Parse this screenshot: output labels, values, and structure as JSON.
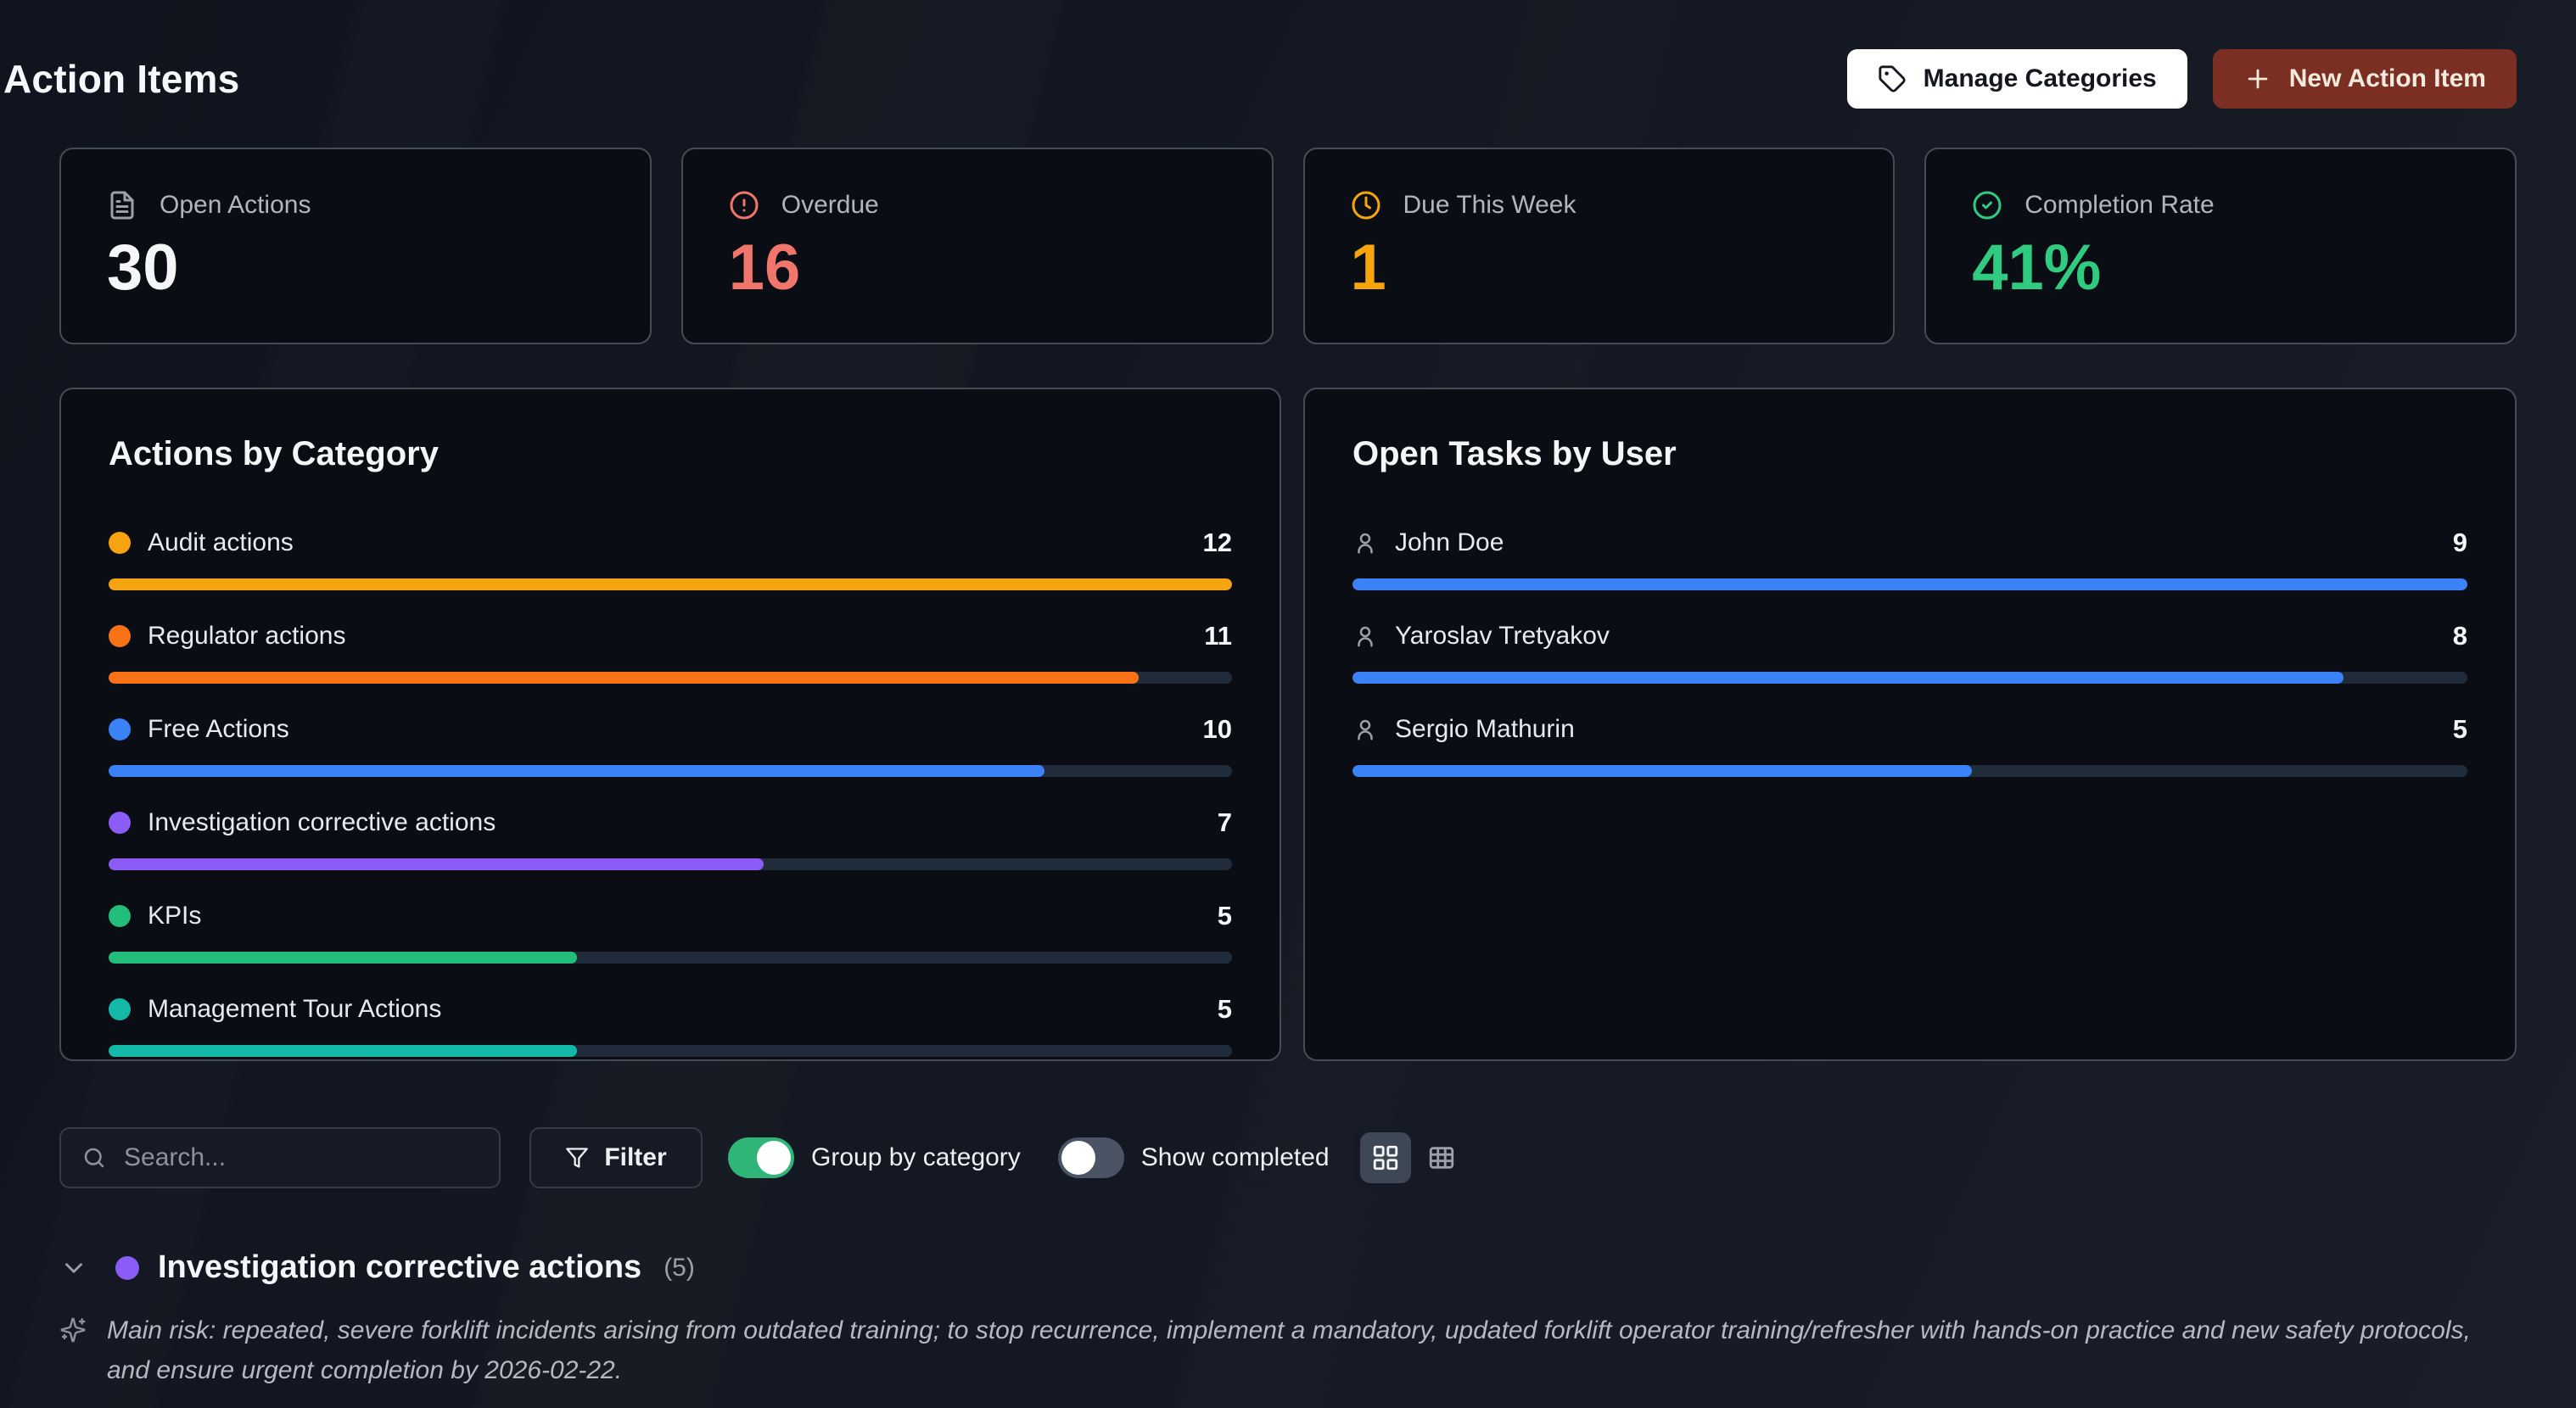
{
  "page": {
    "title": "Action Items"
  },
  "header": {
    "manage_categories_label": "Manage Categories",
    "new_action_item_label": "New Action Item"
  },
  "stats": [
    {
      "label": "Open Actions",
      "value": "30",
      "icon": "file-text-icon",
      "icon_color": "#9aa1ab",
      "value_color": "#f5f6f8"
    },
    {
      "label": "Overdue",
      "value": "16",
      "icon": "alert-circle-icon",
      "icon_color": "#f0756b",
      "value_color": "#f0756b"
    },
    {
      "label": "Due This Week",
      "value": "1",
      "icon": "clock-icon",
      "icon_color": "#f6a60a",
      "value_color": "#f6a60a"
    },
    {
      "label": "Completion Rate",
      "value": "41%",
      "icon": "check-circle-icon",
      "icon_color": "#2fcb80",
      "value_color": "#2fcb80"
    }
  ],
  "chart_data": [
    {
      "type": "bar",
      "title": "Actions by Category",
      "orientation": "horizontal",
      "categories": [
        "Audit actions",
        "Regulator actions",
        "Free Actions",
        "Investigation corrective actions",
        "KPIs",
        "Management Tour Actions"
      ],
      "values": [
        12,
        11,
        10,
        7,
        5,
        5
      ],
      "colors": [
        "#f5a40f",
        "#f97316",
        "#3b82f6",
        "#8b5cf6",
        "#22bd7a",
        "#14b8a6"
      ],
      "xlim": [
        0,
        12
      ],
      "grid": false,
      "value_labels": true
    },
    {
      "type": "bar",
      "title": "Open Tasks by User",
      "orientation": "horizontal",
      "categories": [
        "John Doe",
        "Yaroslav Tretyakov",
        "Sergio Mathurin"
      ],
      "values": [
        9,
        8,
        5
      ],
      "colors": [
        "#3b82f6",
        "#3b82f6",
        "#3b82f6"
      ],
      "xlim": [
        0,
        9
      ],
      "grid": false,
      "value_labels": true,
      "row_icon": "user-icon"
    }
  ],
  "toolbar": {
    "search_placeholder": "Search...",
    "filter_label": "Filter",
    "group_by_category": {
      "label": "Group by category",
      "on": true
    },
    "show_completed": {
      "label": "Show completed",
      "on": false
    },
    "view_modes": [
      {
        "icon": "grid-view-icon",
        "active": true
      },
      {
        "icon": "table-view-icon",
        "active": false
      }
    ]
  },
  "group_section": {
    "title": "Investigation corrective actions",
    "count": "(5)",
    "dot_color": "#8b5cf6",
    "expanded": true,
    "ai_summary": "Main risk: repeated, severe forklift incidents arising from outdated training; to stop recurrence, implement a mandatory, updated forklift operator training/refresher with hands-on practice and new safety protocols, and ensure urgent completion by 2026-02-22."
  },
  "colors": {
    "accent_blue": "#3b82f6",
    "danger": "#f0756b",
    "warning": "#f6a60a",
    "success": "#2fcb80",
    "button_maroon": "#7b2e22",
    "card_bg": "#0a0d14",
    "card_border": "#454c59",
    "bar_track": "#212c3b",
    "toggle_on": "#2eb577"
  }
}
